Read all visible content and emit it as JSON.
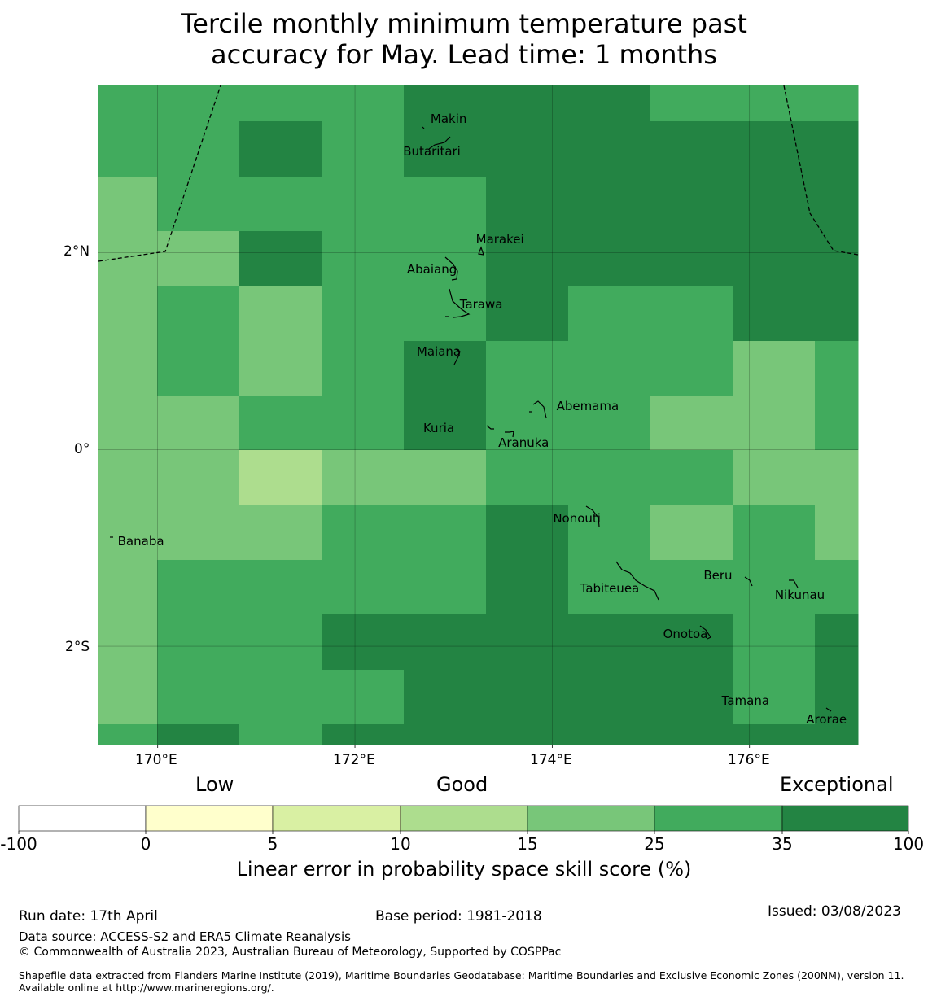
{
  "title": {
    "line1": "Tercile monthly minimum temperature past",
    "line2": "accuracy for May. Lead time: 1 months"
  },
  "map": {
    "lat_labels": [
      "2°N",
      "0°",
      "2°S"
    ],
    "lon_labels": [
      "170°E",
      "172°E",
      "174°E",
      "176°E"
    ],
    "grid_lons": [
      170,
      172,
      174,
      176
    ],
    "grid_lats": [
      2,
      0,
      -2
    ],
    "extent": {
      "lon": [
        169.4,
        177.1
      ],
      "lat": [
        -3.0,
        3.7
      ]
    },
    "skill_colors": {
      "c1": "#78c679",
      "c2": "#addd8e",
      "c3": "#41ab5d",
      "c4": "#238443"
    },
    "place_names": [
      {
        "name": "Makin",
        "lon": 172.95,
        "lat": 3.35
      },
      {
        "name": "Butaritari",
        "lon": 172.78,
        "lat": 3.02
      },
      {
        "name": "Marakei",
        "lon": 173.47,
        "lat": 2.13
      },
      {
        "name": "Abaiang",
        "lon": 172.78,
        "lat": 1.82
      },
      {
        "name": "Tarawa",
        "lon": 173.28,
        "lat": 1.47
      },
      {
        "name": "Maiana",
        "lon": 172.85,
        "lat": 0.99
      },
      {
        "name": "Abemama",
        "lon": 174.34,
        "lat": 0.43
      },
      {
        "name": "Kuria",
        "lon": 172.85,
        "lat": 0.21
      },
      {
        "name": "Aranuka",
        "lon": 173.71,
        "lat": 0.06
      },
      {
        "name": "Nonouti",
        "lon": 174.25,
        "lat": -0.71
      },
      {
        "name": "Banaba",
        "lon": 169.83,
        "lat": -0.94
      },
      {
        "name": "Beru",
        "lon": 175.68,
        "lat": -1.29
      },
      {
        "name": "Tabiteuea",
        "lon": 174.58,
        "lat": -1.42
      },
      {
        "name": "Nikunau",
        "lon": 176.51,
        "lat": -1.49
      },
      {
        "name": "Onotoa",
        "lon": 175.35,
        "lat": -1.88
      },
      {
        "name": "Tamana",
        "lon": 175.96,
        "lat": -2.56
      },
      {
        "name": "Arorae",
        "lon": 176.78,
        "lat": -2.75
      }
    ]
  },
  "colorbar": {
    "headers": [
      "Low",
      "Good",
      "Exceptional"
    ],
    "ticks": [
      "-100",
      "0",
      "5",
      "10",
      "15",
      "25",
      "35",
      "100"
    ],
    "colors": [
      "#ffffff",
      "#ffffcc",
      "#d9f0a3",
      "#addd8e",
      "#78c679",
      "#41ab5d",
      "#238443"
    ],
    "label": "Linear error in probability space skill score (%)"
  },
  "footer": {
    "run_date": "Run date: 17th April",
    "base_period": "Base period: 1981-2018",
    "issued": "Issued: 03/08/2023",
    "data_source": "Data source: ACCESS-S2 and ERA5 Climate Reanalysis",
    "copyright": "© Commonwealth of Australia 2023, Australian Bureau of Meteorology, Supported by COSPPac",
    "shapefile": "Shapefile data extracted from Flanders Marine Institute (2019), Maritime Boundaries Geodatabase: Maritime Boundaries and Exclusive Economic Zones (200NM), version 11. Available online at http://www.marineregions.org/."
  }
}
